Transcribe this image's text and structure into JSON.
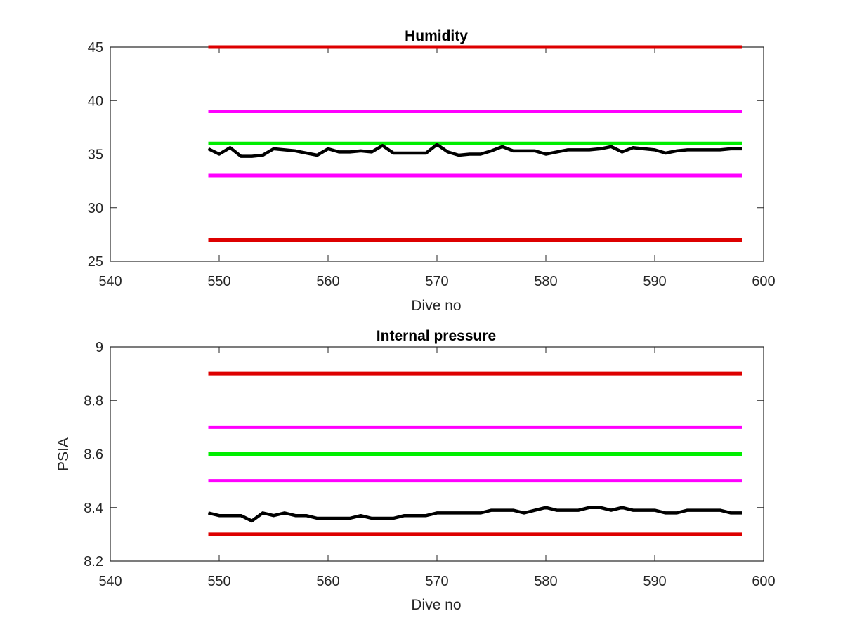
{
  "chart_data": [
    {
      "type": "line",
      "title": "Humidity",
      "xlabel": "Dive no",
      "ylabel": "",
      "xlim": [
        540,
        600
      ],
      "ylim": [
        25,
        45
      ],
      "xticks": [
        "540",
        "550",
        "560",
        "570",
        "580",
        "590",
        "600"
      ],
      "yticks": [
        "25",
        "30",
        "35",
        "40",
        "45"
      ],
      "grid": false,
      "series": [
        {
          "color": "#dd0000",
          "x": [
            549,
            598
          ],
          "y": [
            45,
            45
          ]
        },
        {
          "color": "#ff00ff",
          "x": [
            549,
            598
          ],
          "y": [
            39,
            39
          ]
        },
        {
          "color": "#00ee00",
          "x": [
            549,
            598
          ],
          "y": [
            36,
            36
          ]
        },
        {
          "color": "#ff00ff",
          "x": [
            549,
            598
          ],
          "y": [
            33,
            33
          ]
        },
        {
          "color": "#dd0000",
          "x": [
            549,
            598
          ],
          "y": [
            27,
            27
          ]
        },
        {
          "color": "#000000",
          "x": [
            549,
            550,
            551,
            552,
            553,
            554,
            555,
            556,
            557,
            558,
            559,
            560,
            561,
            562,
            563,
            564,
            565,
            566,
            567,
            568,
            569,
            570,
            571,
            572,
            573,
            574,
            575,
            576,
            577,
            578,
            579,
            580,
            581,
            582,
            583,
            584,
            585,
            586,
            587,
            588,
            589,
            590,
            591,
            592,
            593,
            594,
            595,
            596,
            597,
            598
          ],
          "y": [
            35.5,
            35.0,
            35.6,
            34.8,
            34.8,
            34.9,
            35.5,
            35.4,
            35.3,
            35.1,
            34.9,
            35.5,
            35.2,
            35.2,
            35.3,
            35.2,
            35.8,
            35.1,
            35.1,
            35.1,
            35.1,
            35.9,
            35.2,
            34.9,
            35.0,
            35.0,
            35.3,
            35.7,
            35.3,
            35.3,
            35.3,
            35.0,
            35.2,
            35.4,
            35.4,
            35.4,
            35.5,
            35.7,
            35.2,
            35.6,
            35.5,
            35.4,
            35.1,
            35.3,
            35.4,
            35.4,
            35.4,
            35.4,
            35.5,
            35.5
          ]
        }
      ]
    },
    {
      "type": "line",
      "title": "Internal pressure",
      "xlabel": "Dive no",
      "ylabel": "PSIA",
      "xlim": [
        540,
        600
      ],
      "ylim": [
        8.2,
        9
      ],
      "xticks": [
        "540",
        "550",
        "560",
        "570",
        "580",
        "590",
        "600"
      ],
      "yticks": [
        "8.2",
        "8.4",
        "8.6",
        "8.8",
        "9"
      ],
      "grid": false,
      "series": [
        {
          "color": "#dd0000",
          "x": [
            549,
            598
          ],
          "y": [
            8.9,
            8.9
          ]
        },
        {
          "color": "#ff00ff",
          "x": [
            549,
            598
          ],
          "y": [
            8.7,
            8.7
          ]
        },
        {
          "color": "#00ee00",
          "x": [
            549,
            598
          ],
          "y": [
            8.6,
            8.6
          ]
        },
        {
          "color": "#ff00ff",
          "x": [
            549,
            598
          ],
          "y": [
            8.5,
            8.5
          ]
        },
        {
          "color": "#dd0000",
          "x": [
            549,
            598
          ],
          "y": [
            8.3,
            8.3
          ]
        },
        {
          "color": "#000000",
          "x": [
            549,
            550,
            551,
            552,
            553,
            554,
            555,
            556,
            557,
            558,
            559,
            560,
            561,
            562,
            563,
            564,
            565,
            566,
            567,
            568,
            569,
            570,
            571,
            572,
            573,
            574,
            575,
            576,
            577,
            578,
            579,
            580,
            581,
            582,
            583,
            584,
            585,
            586,
            587,
            588,
            589,
            590,
            591,
            592,
            593,
            594,
            595,
            596,
            597,
            598
          ],
          "y": [
            8.38,
            8.37,
            8.37,
            8.37,
            8.35,
            8.38,
            8.37,
            8.38,
            8.37,
            8.37,
            8.36,
            8.36,
            8.36,
            8.36,
            8.37,
            8.36,
            8.36,
            8.36,
            8.37,
            8.37,
            8.37,
            8.38,
            8.38,
            8.38,
            8.38,
            8.38,
            8.39,
            8.39,
            8.39,
            8.38,
            8.39,
            8.4,
            8.39,
            8.39,
            8.39,
            8.4,
            8.4,
            8.39,
            8.4,
            8.39,
            8.39,
            8.39,
            8.38,
            8.38,
            8.39,
            8.39,
            8.39,
            8.39,
            8.38,
            8.38
          ]
        }
      ]
    }
  ]
}
